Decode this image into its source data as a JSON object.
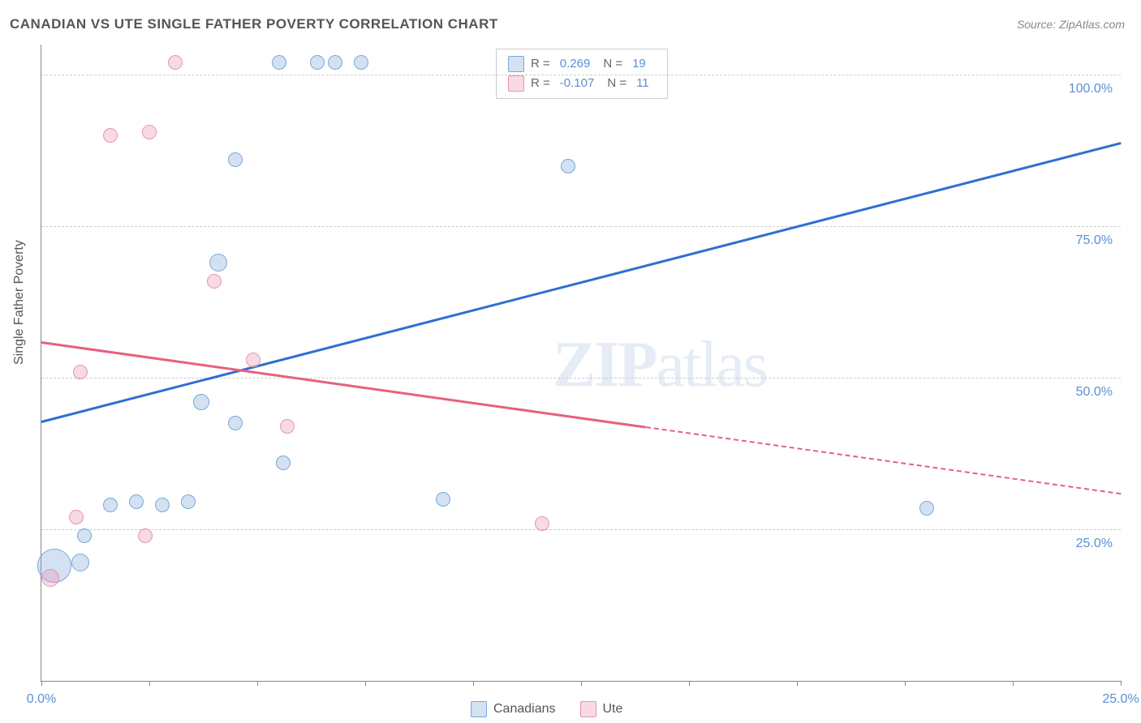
{
  "title": "CANADIAN VS UTE SINGLE FATHER POVERTY CORRELATION CHART",
  "source": "Source: ZipAtlas.com",
  "watermark": {
    "bold": "ZIP",
    "light": "atlas"
  },
  "chart": {
    "type": "scatter",
    "y_axis_label": "Single Father Poverty",
    "xlim": [
      0,
      25
    ],
    "ylim": [
      0,
      105
    ],
    "y_ticks": [
      25,
      50,
      75,
      100
    ],
    "y_tick_labels": [
      "25.0%",
      "50.0%",
      "75.0%",
      "100.0%"
    ],
    "x_ticks": [
      0,
      2.5,
      5,
      7.5,
      10,
      12.5,
      15,
      17.5,
      20,
      22.5,
      25
    ],
    "x_tick_labels": {
      "0": "0.0%",
      "25": "25.0%"
    },
    "grid_color": "#cccccc",
    "axis_color": "#888888",
    "background_color": "#ffffff",
    "series": [
      {
        "name": "Canadians",
        "fill": "rgba(130,170,220,0.35)",
        "stroke": "#7aa8d8",
        "trend_color": "#2f6fd0",
        "R": "0.269",
        "N": "19",
        "trend": {
          "x1": 0,
          "y1": 43,
          "x2": 25,
          "y2": 89
        },
        "points": [
          {
            "x": 0.3,
            "y": 19,
            "r": 20
          },
          {
            "x": 0.9,
            "y": 19.5,
            "r": 10
          },
          {
            "x": 1.0,
            "y": 24,
            "r": 8
          },
          {
            "x": 1.6,
            "y": 29,
            "r": 8
          },
          {
            "x": 2.2,
            "y": 29.5,
            "r": 8
          },
          {
            "x": 2.8,
            "y": 29,
            "r": 8
          },
          {
            "x": 3.4,
            "y": 29.5,
            "r": 8
          },
          {
            "x": 3.7,
            "y": 46,
            "r": 9
          },
          {
            "x": 4.1,
            "y": 69,
            "r": 10
          },
          {
            "x": 4.5,
            "y": 42.5,
            "r": 8
          },
          {
            "x": 5.6,
            "y": 36,
            "r": 8
          },
          {
            "x": 4.5,
            "y": 86,
            "r": 8
          },
          {
            "x": 5.5,
            "y": 102,
            "r": 8
          },
          {
            "x": 6.4,
            "y": 102,
            "r": 8
          },
          {
            "x": 6.8,
            "y": 102,
            "r": 8
          },
          {
            "x": 7.4,
            "y": 102,
            "r": 8
          },
          {
            "x": 9.3,
            "y": 30,
            "r": 8
          },
          {
            "x": 12.2,
            "y": 85,
            "r": 8
          },
          {
            "x": 20.5,
            "y": 28.5,
            "r": 8
          }
        ]
      },
      {
        "name": "Ute",
        "fill": "rgba(235,150,175,0.35)",
        "stroke": "#e596af",
        "trend_color": "#e7607f",
        "R": "-0.107",
        "N": "11",
        "trend_solid": {
          "x1": 0,
          "y1": 56,
          "x2": 14,
          "y2": 42
        },
        "trend_dashed": {
          "x1": 14,
          "y1": 42,
          "x2": 25,
          "y2": 31
        },
        "points": [
          {
            "x": 0.2,
            "y": 17,
            "r": 10
          },
          {
            "x": 0.8,
            "y": 27,
            "r": 8
          },
          {
            "x": 0.9,
            "y": 51,
            "r": 8
          },
          {
            "x": 1.6,
            "y": 90,
            "r": 8
          },
          {
            "x": 2.5,
            "y": 90.5,
            "r": 8
          },
          {
            "x": 2.4,
            "y": 24,
            "r": 8
          },
          {
            "x": 3.1,
            "y": 102,
            "r": 8
          },
          {
            "x": 4.0,
            "y": 66,
            "r": 8
          },
          {
            "x": 4.9,
            "y": 53,
            "r": 8
          },
          {
            "x": 5.7,
            "y": 42,
            "r": 8
          },
          {
            "x": 11.6,
            "y": 26,
            "r": 8
          }
        ]
      }
    ],
    "stats_box": {
      "rows": [
        {
          "swatch_fill": "rgba(130,170,220,0.35)",
          "swatch_stroke": "#7aa8d8",
          "R": "0.269",
          "N": "19"
        },
        {
          "swatch_fill": "rgba(235,150,175,0.35)",
          "swatch_stroke": "#e596af",
          "R": "-0.107",
          "N": "11"
        }
      ]
    },
    "bottom_legend": [
      {
        "swatch_fill": "rgba(130,170,220,0.35)",
        "swatch_stroke": "#7aa8d8",
        "label": "Canadians"
      },
      {
        "swatch_fill": "rgba(235,150,175,0.35)",
        "swatch_stroke": "#e596af",
        "label": "Ute"
      }
    ]
  }
}
